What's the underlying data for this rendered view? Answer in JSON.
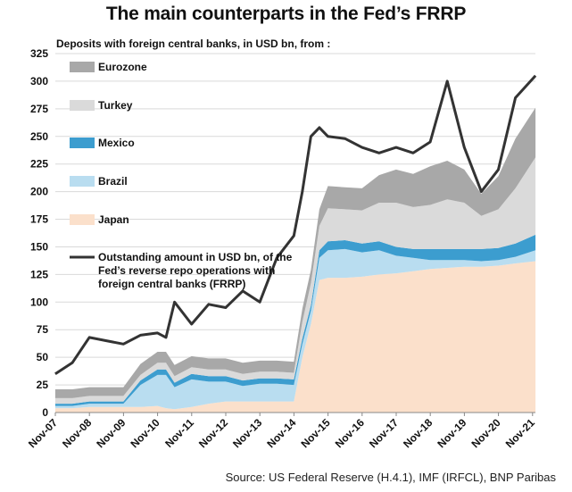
{
  "chart_data": {
    "type": "area",
    "title": "The main counterparts in the Fed’s FRRP",
    "subtitle": "Deposits with foreign central banks, in USD bn, from :",
    "source": "Source: US Federal Reserve (H.4.1), IMF (IRFCL), BNP Paribas",
    "xlabel": "",
    "ylabel": "",
    "ylim": [
      0,
      325
    ],
    "yticks": [
      0,
      25,
      50,
      75,
      100,
      125,
      150,
      175,
      200,
      225,
      250,
      275,
      300,
      325
    ],
    "xlim": [
      2007.833,
      2021.917
    ],
    "x_tick_labels": [
      "Nov-07",
      "Nov-08",
      "Nov-09",
      "Nov-10",
      "Nov-11",
      "Nov-12",
      "Nov-13",
      "Nov-14",
      "Nov-15",
      "Nov-16",
      "Nov-17",
      "Nov-18",
      "Nov-19",
      "Nov-20",
      "Nov-21"
    ],
    "x_tick_values": [
      2007.833,
      2008.833,
      2009.833,
      2010.833,
      2011.833,
      2012.833,
      2013.833,
      2014.833,
      2015.833,
      2016.833,
      2017.833,
      2018.833,
      2019.833,
      2020.833,
      2021.833
    ],
    "grid": "horizontal",
    "legend_position": "top-left",
    "x": [
      2007.83,
      2008.33,
      2008.83,
      2009.33,
      2009.83,
      2010.33,
      2010.83,
      2011.08,
      2011.33,
      2011.83,
      2012.33,
      2012.83,
      2013.33,
      2013.83,
      2014.33,
      2014.83,
      2015.08,
      2015.33,
      2015.58,
      2015.83,
      2016.33,
      2016.83,
      2017.33,
      2017.83,
      2018.33,
      2018.83,
      2019.33,
      2019.83,
      2020.33,
      2020.83,
      2021.33,
      2021.92
    ],
    "series": [
      {
        "name": "Japan",
        "color": "#FBE0CB",
        "values": [
          4,
          4,
          5,
          5,
          5,
          5,
          6,
          4,
          3,
          5,
          8,
          10,
          10,
          10,
          10,
          10,
          50,
          80,
          120,
          122,
          122,
          123,
          125,
          126,
          128,
          130,
          131,
          132,
          132,
          133,
          135,
          137
        ]
      },
      {
        "name": "Brazil",
        "color": "#B9DDF0",
        "values": [
          2,
          2,
          3,
          3,
          3,
          20,
          28,
          30,
          20,
          25,
          20,
          18,
          14,
          16,
          16,
          15,
          12,
          12,
          20,
          25,
          26,
          22,
          22,
          16,
          12,
          8,
          7,
          6,
          5,
          5,
          6,
          10
        ]
      },
      {
        "name": "Mexico",
        "color": "#3C9DCF",
        "values": [
          2,
          2,
          2,
          2,
          2,
          4,
          5,
          5,
          4,
          5,
          5,
          5,
          5,
          5,
          5,
          5,
          5,
          5,
          7,
          8,
          8,
          8,
          8,
          8,
          8,
          10,
          10,
          10,
          11,
          11,
          12,
          14
        ]
      },
      {
        "name": "Turkey",
        "color": "#DADADA",
        "values": [
          5,
          5,
          5,
          5,
          5,
          5,
          6,
          6,
          6,
          6,
          6,
          6,
          6,
          6,
          6,
          6,
          15,
          20,
          22,
          30,
          28,
          30,
          35,
          40,
          38,
          40,
          45,
          42,
          30,
          35,
          50,
          70
        ]
      },
      {
        "name": "Eurozone",
        "color": "#A8A8A8",
        "values": [
          8,
          8,
          8,
          8,
          8,
          10,
          10,
          10,
          10,
          10,
          10,
          10,
          10,
          10,
          10,
          10,
          12,
          12,
          15,
          20,
          20,
          20,
          25,
          30,
          30,
          35,
          35,
          30,
          20,
          30,
          45,
          45
        ]
      },
      {
        "name": "Outstanding amount in USD bn, of the Fed’s reverse repo operations with foreign central banks (FRRP)",
        "color": "#333333",
        "values": [
          35,
          45,
          68,
          65,
          62,
          70,
          72,
          68,
          100,
          80,
          98,
          95,
          110,
          100,
          140,
          160,
          200,
          250,
          258,
          250,
          248,
          240,
          235,
          240,
          235,
          245,
          300,
          240,
          200,
          220,
          285,
          305
        ]
      }
    ],
    "legend": [
      "Eurozone",
      "Turkey",
      "Mexico",
      "Brazil",
      "Japan",
      "Outstanding amount in USD bn, of the Fed’s reverse repo operations with foreign central banks (FRRP)"
    ],
    "legend_lines": {
      "frrp": [
        "Outstanding amount in USD bn, of the",
        "Fed’s reverse repo operations with",
        "foreign central banks (FRRP)"
      ]
    }
  }
}
